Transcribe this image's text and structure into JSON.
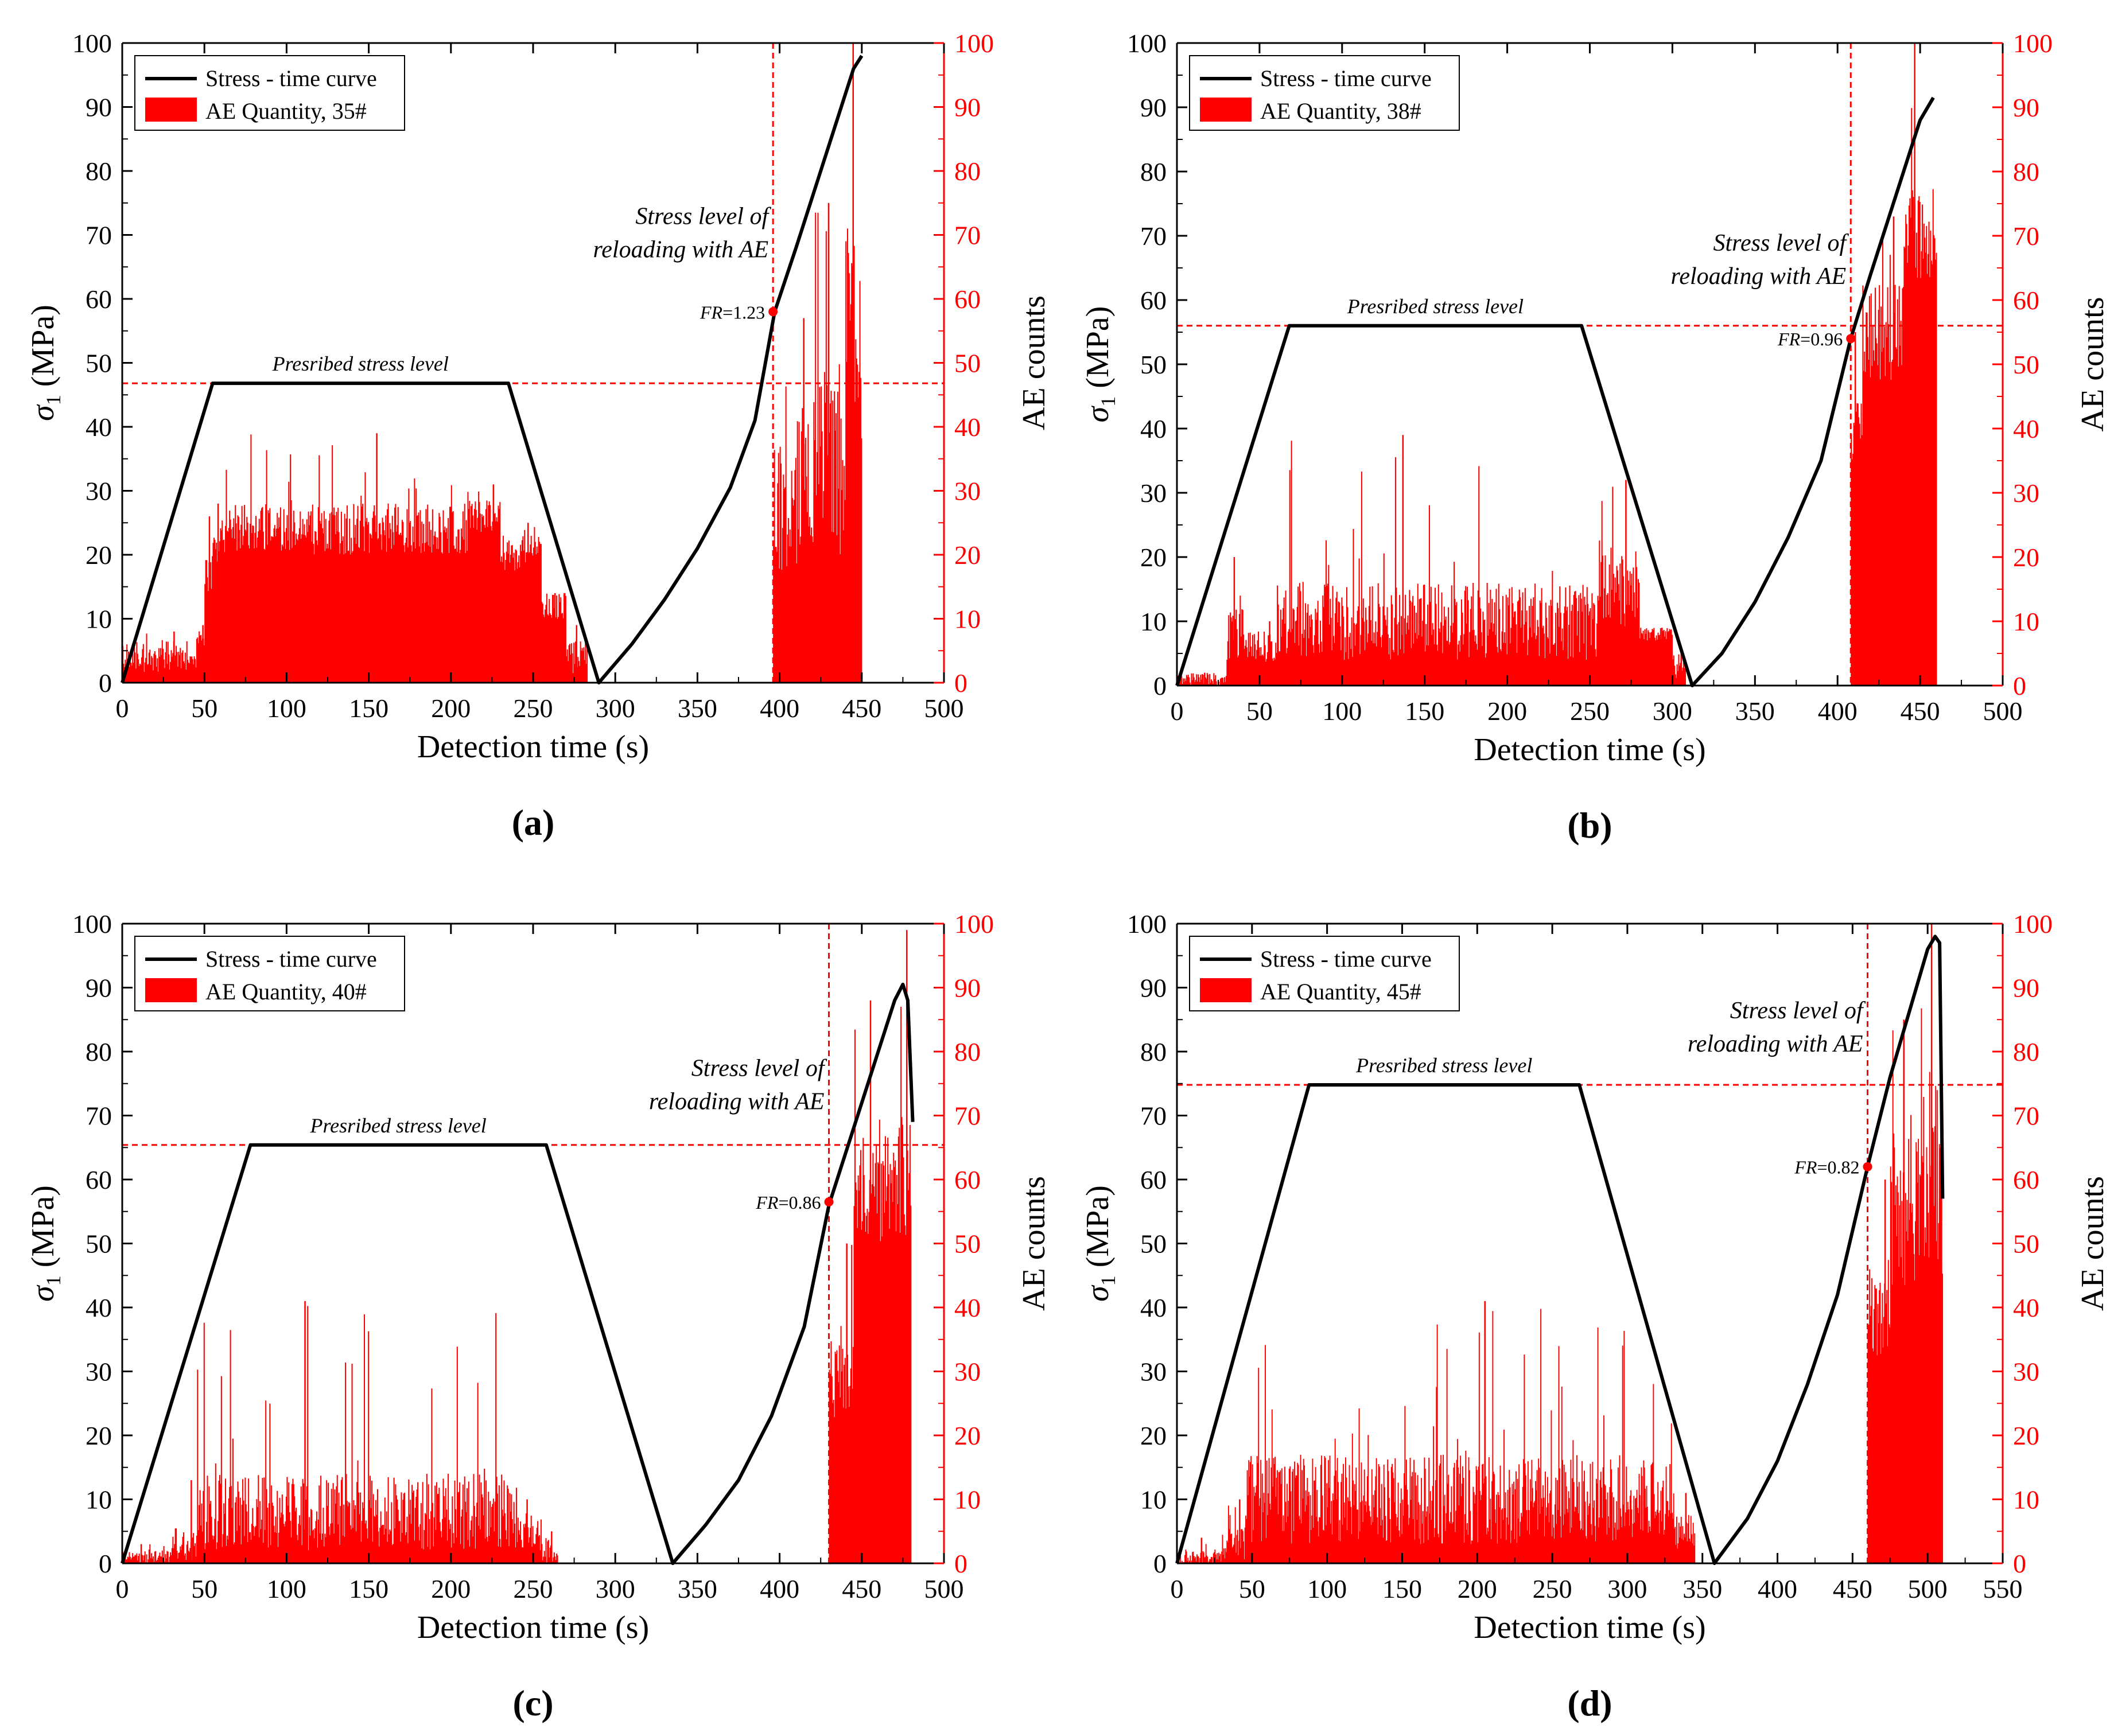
{
  "chart_data": [
    {
      "panel": "(a)",
      "panel_letter": "a",
      "type": "line+bar",
      "xlabel": "Detection time (s)",
      "ylabel_sigma": "σ",
      "ylabel_sub": "1",
      "ylabel_unit": " (MPa)",
      "y2label": "AE counts",
      "xlim": [
        0,
        500
      ],
      "xticks": [
        0,
        50,
        100,
        150,
        200,
        250,
        300,
        350,
        400,
        450,
        500
      ],
      "ylim": [
        0,
        100
      ],
      "yticks": [
        0,
        10,
        20,
        30,
        40,
        50,
        60,
        70,
        80,
        90,
        100
      ],
      "y2lim": [
        0,
        100
      ],
      "y2ticks": [
        0,
        10,
        20,
        30,
        40,
        50,
        60,
        70,
        80,
        90,
        100
      ],
      "legend": {
        "position": "top-left",
        "line_label": "Stress - time curve",
        "bar_label": "AE Quantity, 35#"
      },
      "stress_curve": {
        "name": "Stress - time curve",
        "points": [
          [
            0,
            0
          ],
          [
            55,
            46.8
          ],
          [
            235,
            46.8
          ],
          [
            290,
            0
          ],
          [
            310,
            6
          ],
          [
            330,
            13
          ],
          [
            350,
            21
          ],
          [
            370,
            30.5
          ],
          [
            385,
            41
          ],
          [
            397,
            58
          ],
          [
            410,
            68
          ],
          [
            425,
            80
          ],
          [
            440,
            92
          ],
          [
            445,
            96
          ],
          [
            450,
            98
          ]
        ]
      },
      "prescribed_level": {
        "value": 46.8,
        "label": "Presribed stress level"
      },
      "reload_time": 396,
      "fr_point": {
        "x": 396,
        "y": 58,
        "label_prefix": "FR",
        "label_value": "=1.23"
      },
      "annotation": {
        "line1": "Stress level of",
        "line2": "reloading with AE"
      },
      "ae_counts": {
        "name": "AE Quantity, 35#",
        "segments": [
          {
            "start": 0,
            "end": 45,
            "base": 4,
            "var": 5,
            "spike": 8
          },
          {
            "start": 45,
            "end": 50,
            "base": 7,
            "var": 3,
            "spike": 9
          },
          {
            "start": 50,
            "end": 55,
            "base": 18,
            "var": 8,
            "spike": 26
          },
          {
            "start": 55,
            "end": 60,
            "base": 22,
            "var": 8,
            "spike": 28
          },
          {
            "start": 60,
            "end": 210,
            "base": 24,
            "var": 8,
            "spike": 39
          },
          {
            "start": 210,
            "end": 230,
            "base": 26,
            "var": 5,
            "spike": 31
          },
          {
            "start": 230,
            "end": 255,
            "base": 20,
            "var": 6,
            "spike": 25
          },
          {
            "start": 255,
            "end": 270,
            "base": 12,
            "var": 5,
            "spike": 14
          },
          {
            "start": 270,
            "end": 283,
            "base": 4,
            "var": 5,
            "spike": 9
          },
          {
            "start": 396,
            "end": 420,
            "base": 30,
            "var": 25,
            "spike": 57
          },
          {
            "start": 420,
            "end": 440,
            "base": 35,
            "var": 30,
            "spike": 75
          },
          {
            "start": 440,
            "end": 450,
            "base": 55,
            "var": 35,
            "spike": 100
          }
        ]
      }
    },
    {
      "panel": "(b)",
      "panel_letter": "b",
      "type": "line+bar",
      "xlabel": "Detection time (s)",
      "ylabel_sigma": "σ",
      "ylabel_sub": "1",
      "ylabel_unit": " (MPa)",
      "y2label": "AE counts",
      "xlim": [
        0,
        500
      ],
      "xticks": [
        0,
        50,
        100,
        150,
        200,
        250,
        300,
        350,
        400,
        450,
        500
      ],
      "ylim": [
        0,
        100
      ],
      "yticks": [
        0,
        10,
        20,
        30,
        40,
        50,
        60,
        70,
        80,
        90,
        100
      ],
      "y2lim": [
        0,
        100
      ],
      "y2ticks": [
        0,
        10,
        20,
        30,
        40,
        50,
        60,
        70,
        80,
        90,
        100
      ],
      "legend": {
        "position": "top-left",
        "line_label": "Stress - time curve",
        "bar_label": "AE Quantity, 38#"
      },
      "stress_curve": {
        "name": "Stress - time curve",
        "points": [
          [
            0,
            0
          ],
          [
            68,
            56
          ],
          [
            245,
            56
          ],
          [
            312,
            0
          ],
          [
            330,
            5
          ],
          [
            350,
            13
          ],
          [
            370,
            23
          ],
          [
            390,
            35
          ],
          [
            408,
            54
          ],
          [
            420,
            64
          ],
          [
            435,
            76
          ],
          [
            450,
            88
          ],
          [
            458,
            91.5
          ]
        ]
      },
      "prescribed_level": {
        "value": 56,
        "label": "Presribed stress level"
      },
      "reload_time": 408,
      "fr_point": {
        "x": 408,
        "y": 54,
        "label_prefix": "FR",
        "label_value": "=0.96"
      },
      "annotation": {
        "line1": "Stress level of",
        "line2": "reloading with AE"
      },
      "ae_counts": {
        "name": "AE Quantity, 38#",
        "segments": [
          {
            "start": 0,
            "end": 30,
            "base": 1,
            "var": 2,
            "spike": 2
          },
          {
            "start": 30,
            "end": 40,
            "base": 8,
            "var": 8,
            "spike": 20
          },
          {
            "start": 40,
            "end": 60,
            "base": 6,
            "var": 5,
            "spike": 10
          },
          {
            "start": 60,
            "end": 255,
            "base": 10,
            "var": 12,
            "spike": 39
          },
          {
            "start": 255,
            "end": 280,
            "base": 15,
            "var": 12,
            "spike": 32
          },
          {
            "start": 280,
            "end": 300,
            "base": 8,
            "var": 2,
            "spike": 9
          },
          {
            "start": 300,
            "end": 308,
            "base": 3,
            "var": 4,
            "spike": 6
          },
          {
            "start": 408,
            "end": 415,
            "base": 40,
            "var": 10,
            "spike": 55
          },
          {
            "start": 415,
            "end": 440,
            "base": 55,
            "var": 15,
            "spike": 73
          },
          {
            "start": 440,
            "end": 460,
            "base": 70,
            "var": 15,
            "spike": 100
          }
        ]
      }
    },
    {
      "panel": "(c)",
      "panel_letter": "c",
      "type": "line+bar",
      "xlabel": "Detection time (s)",
      "ylabel_sigma": "σ",
      "ylabel_sub": "1",
      "ylabel_unit": " (MPa)",
      "y2label": "AE counts",
      "xlim": [
        0,
        500
      ],
      "xticks": [
        0,
        50,
        100,
        150,
        200,
        250,
        300,
        350,
        400,
        450,
        500
      ],
      "ylim": [
        0,
        100
      ],
      "yticks": [
        0,
        10,
        20,
        30,
        40,
        50,
        60,
        70,
        80,
        90,
        100
      ],
      "y2lim": [
        0,
        100
      ],
      "y2ticks": [
        0,
        10,
        20,
        30,
        40,
        50,
        60,
        70,
        80,
        90,
        100
      ],
      "legend": {
        "position": "top-left",
        "line_label": "Stress - time curve",
        "bar_label": "AE Quantity, 40#"
      },
      "stress_curve": {
        "name": "Stress - time curve",
        "points": [
          [
            0,
            0
          ],
          [
            78,
            65.4
          ],
          [
            258,
            65.4
          ],
          [
            335,
            0
          ],
          [
            355,
            6
          ],
          [
            375,
            13
          ],
          [
            395,
            23
          ],
          [
            415,
            37
          ],
          [
            430,
            56
          ],
          [
            445,
            68
          ],
          [
            460,
            80
          ],
          [
            470,
            88
          ],
          [
            475,
            90.5
          ],
          [
            478,
            88
          ],
          [
            481,
            69
          ]
        ]
      },
      "prescribed_level": {
        "value": 65.4,
        "label": "Presribed stress level"
      },
      "reload_time": 430,
      "fr_point": {
        "x": 430,
        "y": 56.5,
        "label_prefix": "FR",
        "label_value": "=0.86"
      },
      "annotation": {
        "line1": "Stress level of",
        "line2": "reloading with AE"
      },
      "ae_counts": {
        "name": "AE Quantity, 40#",
        "segments": [
          {
            "start": 0,
            "end": 30,
            "base": 1,
            "var": 2,
            "spike": 3
          },
          {
            "start": 30,
            "end": 45,
            "base": 3,
            "var": 5,
            "spike": 13
          },
          {
            "start": 45,
            "end": 240,
            "base": 8,
            "var": 12,
            "spike": 41
          },
          {
            "start": 240,
            "end": 255,
            "base": 5,
            "var": 6,
            "spike": 10
          },
          {
            "start": 255,
            "end": 265,
            "base": 2,
            "var": 4,
            "spike": 5
          },
          {
            "start": 430,
            "end": 445,
            "base": 30,
            "var": 15,
            "spike": 50
          },
          {
            "start": 445,
            "end": 470,
            "base": 60,
            "var": 20,
            "spike": 88
          },
          {
            "start": 470,
            "end": 480,
            "base": 60,
            "var": 20,
            "spike": 99
          }
        ]
      }
    },
    {
      "panel": "(d)",
      "panel_letter": "d",
      "type": "line+bar",
      "xlabel": "Detection time (s)",
      "ylabel_sigma": "σ",
      "ylabel_sub": "1",
      "ylabel_unit": " (MPa)",
      "y2label": "AE counts",
      "xlim": [
        0,
        550
      ],
      "xticks": [
        0,
        50,
        100,
        150,
        200,
        250,
        300,
        350,
        400,
        450,
        500,
        550
      ],
      "ylim": [
        0,
        100
      ],
      "yticks": [
        0,
        10,
        20,
        30,
        40,
        50,
        60,
        70,
        80,
        90,
        100
      ],
      "y2lim": [
        0,
        100
      ],
      "y2ticks": [
        0,
        10,
        20,
        30,
        40,
        50,
        60,
        70,
        80,
        90,
        100
      ],
      "legend": {
        "position": "top-left",
        "line_label": "Stress - time curve",
        "bar_label": "AE Quantity, 45#"
      },
      "stress_curve": {
        "name": "Stress - time curve",
        "points": [
          [
            0,
            0
          ],
          [
            88,
            74.8
          ],
          [
            268,
            74.8
          ],
          [
            358,
            0
          ],
          [
            380,
            7
          ],
          [
            400,
            16
          ],
          [
            420,
            28
          ],
          [
            440,
            42
          ],
          [
            460,
            62
          ],
          [
            475,
            76
          ],
          [
            490,
            88
          ],
          [
            500,
            96
          ],
          [
            505,
            98
          ],
          [
            508,
            97
          ],
          [
            510,
            57
          ]
        ]
      },
      "prescribed_level": {
        "value": 74.8,
        "label": "Presribed stress level"
      },
      "reload_time": 460,
      "fr_point": {
        "x": 460,
        "y": 62,
        "label_prefix": "FR",
        "label_value": "=0.82"
      },
      "annotation": {
        "line1": "Stress level of",
        "line2": "reloading with AE"
      },
      "ae_counts": {
        "name": "AE Quantity, 45#",
        "segments": [
          {
            "start": 0,
            "end": 30,
            "base": 1,
            "var": 2,
            "spike": 4
          },
          {
            "start": 30,
            "end": 45,
            "base": 3,
            "var": 5,
            "spike": 10
          },
          {
            "start": 45,
            "end": 330,
            "base": 10,
            "var": 14,
            "spike": 41
          },
          {
            "start": 330,
            "end": 345,
            "base": 5,
            "var": 6,
            "spike": 11
          },
          {
            "start": 460,
            "end": 475,
            "base": 40,
            "var": 15,
            "spike": 60
          },
          {
            "start": 475,
            "end": 495,
            "base": 55,
            "var": 25,
            "spike": 85
          },
          {
            "start": 495,
            "end": 510,
            "base": 60,
            "var": 30,
            "spike": 100
          }
        ]
      }
    }
  ]
}
